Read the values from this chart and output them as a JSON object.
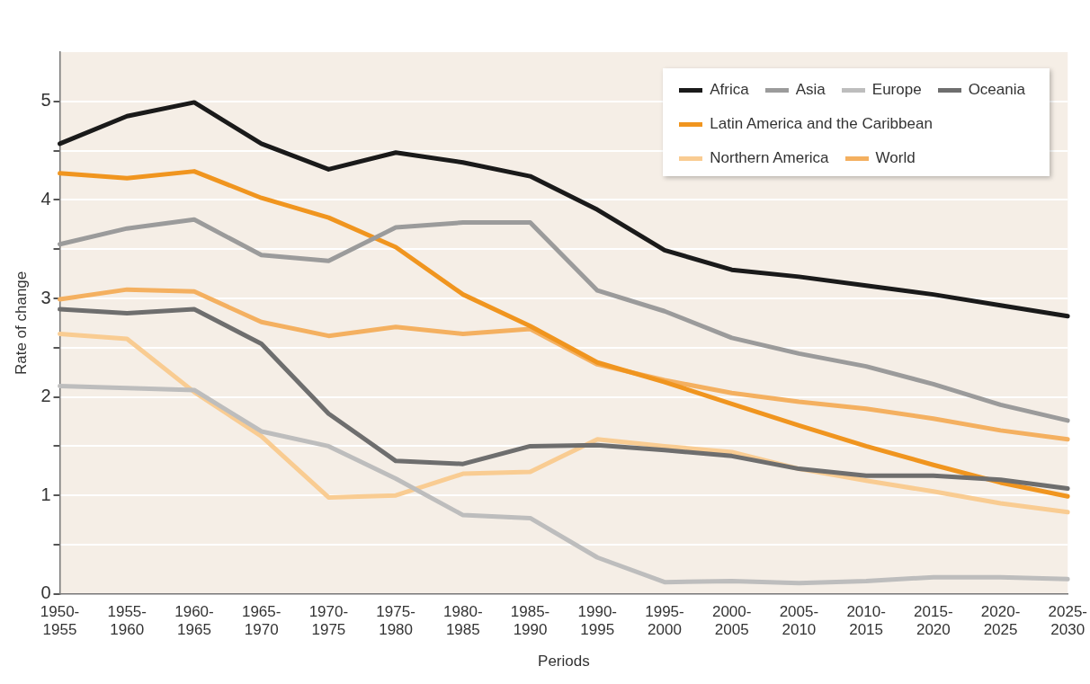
{
  "chart_data": {
    "type": "line",
    "xlabel": "Periods",
    "ylabel": "Rate of change",
    "categories": [
      "1950-1955",
      "1955-1960",
      "1960-1965",
      "1965-1970",
      "1970-1975",
      "1975-1980",
      "1980-1985",
      "1985-1990",
      "1990-1995",
      "1995-2000",
      "2000-2005",
      "2005-2010",
      "2010-2015",
      "2015-2020",
      "2020-2025",
      "2025-2030"
    ],
    "series": [
      {
        "name": "Africa",
        "color": "#1a1a1a",
        "values": [
          4.57,
          4.85,
          4.99,
          4.57,
          4.31,
          4.48,
          4.38,
          4.24,
          3.9,
          3.49,
          3.29,
          3.22,
          3.13,
          3.04,
          2.93,
          2.82
        ]
      },
      {
        "name": "Asia",
        "color": "#9b9b9b",
        "values": [
          3.55,
          3.71,
          3.8,
          3.44,
          3.38,
          3.72,
          3.77,
          3.77,
          3.08,
          2.87,
          2.6,
          2.44,
          2.31,
          2.13,
          1.92,
          1.76
        ]
      },
      {
        "name": "Europe",
        "color": "#bdbdbd",
        "values": [
          2.11,
          2.09,
          2.07,
          1.65,
          1.5,
          1.17,
          0.8,
          0.77,
          0.37,
          0.12,
          0.13,
          0.11,
          0.13,
          0.17,
          0.17,
          0.15
        ]
      },
      {
        "name": "Oceania",
        "color": "#6e6e6e",
        "values": [
          2.89,
          2.85,
          2.89,
          2.54,
          1.83,
          1.35,
          1.32,
          1.5,
          1.51,
          1.46,
          1.4,
          1.27,
          1.2,
          1.2,
          1.16,
          1.07
        ]
      },
      {
        "name": "Latin America and the Caribbean",
        "color": "#f0951f",
        "values": [
          4.27,
          4.22,
          4.29,
          4.02,
          3.82,
          3.52,
          3.04,
          2.72,
          2.35,
          2.15,
          1.93,
          1.71,
          1.5,
          1.31,
          1.13,
          0.99
        ]
      },
      {
        "name": "Northern America",
        "color": "#f9cc92",
        "values": [
          2.64,
          2.59,
          2.05,
          1.6,
          0.98,
          1.0,
          1.22,
          1.24,
          1.57,
          1.5,
          1.44,
          1.27,
          1.15,
          1.04,
          0.92,
          0.83
        ]
      },
      {
        "name": "World",
        "color": "#f4b060",
        "values": [
          2.99,
          3.09,
          3.07,
          2.76,
          2.62,
          2.71,
          2.64,
          2.69,
          2.33,
          2.17,
          2.04,
          1.95,
          1.88,
          1.78,
          1.66,
          1.57
        ]
      }
    ],
    "ylim": [
      0,
      5.5
    ],
    "yticks": [
      0,
      {
        "value": 0.5,
        "label": null
      },
      1,
      {
        "value": 1.5,
        "label": null
      },
      2,
      {
        "value": 2.5,
        "label": null
      },
      3,
      {
        "value": 3.5,
        "label": null
      },
      4,
      {
        "value": 4.5,
        "label": null
      },
      5
    ],
    "grid": "y",
    "legend": "top right",
    "marker": "none",
    "line_style": "solid"
  }
}
